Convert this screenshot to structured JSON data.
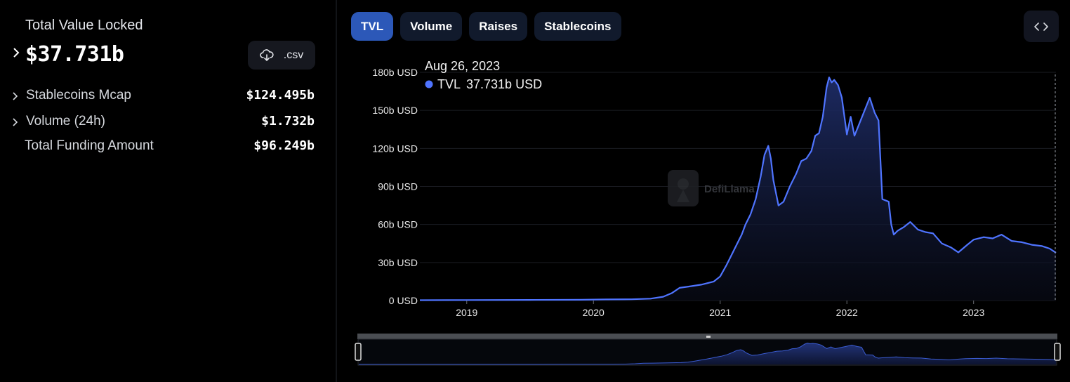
{
  "summary": {
    "tvl_title": "Total Value Locked",
    "tvl_value": "$37.731b",
    "csv_label": ".csv",
    "rows": [
      {
        "label": "Stablecoins Mcap",
        "value": "$124.495b",
        "expandable": true
      },
      {
        "label": "Volume (24h)",
        "value": "$1.732b",
        "expandable": true
      },
      {
        "label": "Total Funding Amount",
        "value": "$96.249b",
        "expandable": false
      }
    ]
  },
  "tabs": [
    {
      "label": "TVL",
      "active": true
    },
    {
      "label": "Volume",
      "active": false
    },
    {
      "label": "Raises",
      "active": false
    },
    {
      "label": "Stablecoins",
      "active": false
    }
  ],
  "icons": {
    "expand": "chevron-right-icon",
    "download": "cloud-download-icon",
    "embed": "code-brackets-icon",
    "watermark": "defillama-logo-icon"
  },
  "colors": {
    "series": "#4f74ff",
    "active_tab": "#2c58b8",
    "tab": "#111a2c"
  },
  "tooltip": {
    "date": "Aug 26, 2023",
    "series_label": "TVL",
    "series_value": "37.731b USD"
  },
  "watermark": "DefiLlama",
  "chart_data": {
    "type": "area",
    "title": "",
    "ylabel": "",
    "xlabel": "",
    "y_tick_labels": [
      "0 USD",
      "30b USD",
      "60b USD",
      "90b USD",
      "120b USD",
      "150b USD",
      "180b USD"
    ],
    "y_ticks": [
      0,
      30,
      60,
      90,
      120,
      150,
      180
    ],
    "x_tick_labels": [
      "2019",
      "2020",
      "2021",
      "2022",
      "2023"
    ],
    "ylim": [
      0,
      180
    ],
    "xlim": [
      2018.63,
      2023.65
    ],
    "grid": true,
    "series": [
      {
        "name": "TVL",
        "x": [
          2018.63,
          2019.0,
          2019.5,
          2019.9,
          2020.1,
          2020.3,
          2020.45,
          2020.55,
          2020.62,
          2020.68,
          2020.75,
          2020.85,
          2020.95,
          2021.0,
          2021.05,
          2021.1,
          2021.14,
          2021.17,
          2021.2,
          2021.24,
          2021.28,
          2021.32,
          2021.35,
          2021.38,
          2021.4,
          2021.42,
          2021.46,
          2021.5,
          2021.55,
          2021.6,
          2021.64,
          2021.68,
          2021.72,
          2021.75,
          2021.78,
          2021.81,
          2021.84,
          2021.86,
          2021.88,
          2021.9,
          2021.93,
          2021.96,
          2022.0,
          2022.03,
          2022.06,
          2022.1,
          2022.14,
          2022.18,
          2022.22,
          2022.25,
          2022.28,
          2022.33,
          2022.35,
          2022.37,
          2022.4,
          2022.45,
          2022.5,
          2022.56,
          2022.62,
          2022.68,
          2022.75,
          2022.82,
          2022.88,
          2022.95,
          2023.0,
          2023.08,
          2023.15,
          2023.22,
          2023.3,
          2023.38,
          2023.46,
          2023.54,
          2023.6,
          2023.65
        ],
        "values": [
          0.3,
          0.4,
          0.5,
          0.6,
          0.9,
          1.0,
          1.5,
          3.0,
          6.0,
          10.0,
          11.0,
          12.5,
          15.0,
          19.0,
          28.0,
          38.0,
          46.0,
          52.0,
          60.0,
          68.0,
          80.0,
          98.0,
          115.0,
          122.0,
          112.0,
          95.0,
          75.0,
          78.0,
          90.0,
          100.0,
          110.0,
          112.0,
          118.0,
          130.0,
          132.0,
          145.0,
          168.0,
          176.0,
          172.0,
          174.0,
          170.0,
          160.0,
          131.0,
          145.0,
          130.0,
          140.0,
          150.0,
          160.0,
          148.0,
          142.0,
          80.0,
          78.0,
          60.0,
          52.0,
          55.0,
          58.0,
          62.0,
          56.0,
          54.0,
          53.0,
          45.0,
          42.0,
          38.0,
          44.0,
          48.0,
          50.0,
          49.0,
          52.0,
          47.0,
          46.0,
          44.0,
          43.0,
          41.0,
          37.7
        ]
      }
    ],
    "legend": "none"
  }
}
